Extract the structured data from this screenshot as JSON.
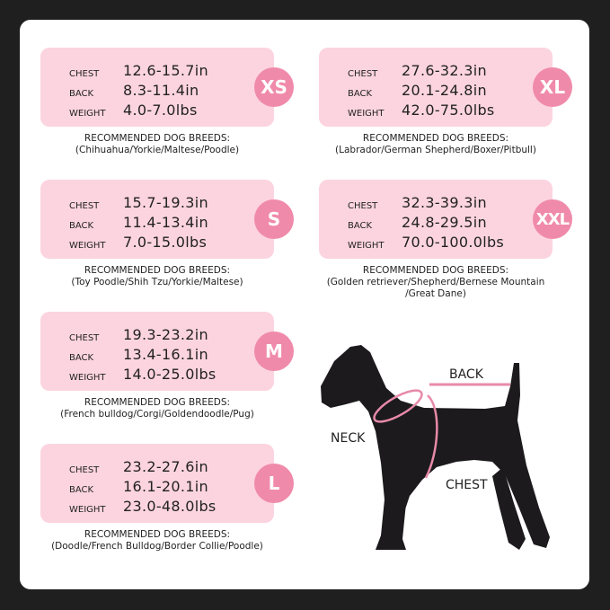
{
  "labels": {
    "chest": "CHEST",
    "back": "BACK",
    "weight": "WEIGHT",
    "recommended": "RECOMMENDED DOG BREEDS:"
  },
  "colors": {
    "card": "#fcd4e0",
    "badge": "#f08aab",
    "background": "#1f1f1f",
    "measure_line": "#e88aa8"
  },
  "sizes": [
    {
      "size": "XS",
      "chest": "12.6-15.7in",
      "back": "8.3-11.4in",
      "weight": "4.0-7.0lbs",
      "breeds": [
        "(Chihuahua/Yorkie/Maltese/Poodle)"
      ]
    },
    {
      "size": "S",
      "chest": "15.7-19.3in",
      "back": "11.4-13.4in",
      "weight": "7.0-15.0lbs",
      "breeds": [
        "(Toy Poodle/Shih Tzu/Yorkie/Maltese)"
      ]
    },
    {
      "size": "M",
      "chest": "19.3-23.2in",
      "back": "13.4-16.1in",
      "weight": "14.0-25.0lbs",
      "breeds": [
        "(French bulldog/Corgi/Goldendoodle/Pug)"
      ]
    },
    {
      "size": "L",
      "chest": "23.2-27.6in",
      "back": "16.1-20.1in",
      "weight": "23.0-48.0lbs",
      "breeds": [
        "(Doodle/French Bulldog/Border Collie/Poodle)"
      ]
    },
    {
      "size": "XL",
      "chest": "27.6-32.3in",
      "back": "20.1-24.8in",
      "weight": "42.0-75.0lbs",
      "breeds": [
        "(Labrador/German Shepherd/Boxer/Pitbull)"
      ]
    },
    {
      "size": "XXL",
      "chest": "32.3-39.3in",
      "back": "24.8-29.5in",
      "weight": "70.0-100.0lbs",
      "breeds": [
        "(Golden retriever/Shepherd/Bernese Mountain",
        "/Great Dane)"
      ]
    }
  ],
  "diagram": {
    "back": "BACK",
    "neck": "NECK",
    "chest": "CHEST"
  }
}
